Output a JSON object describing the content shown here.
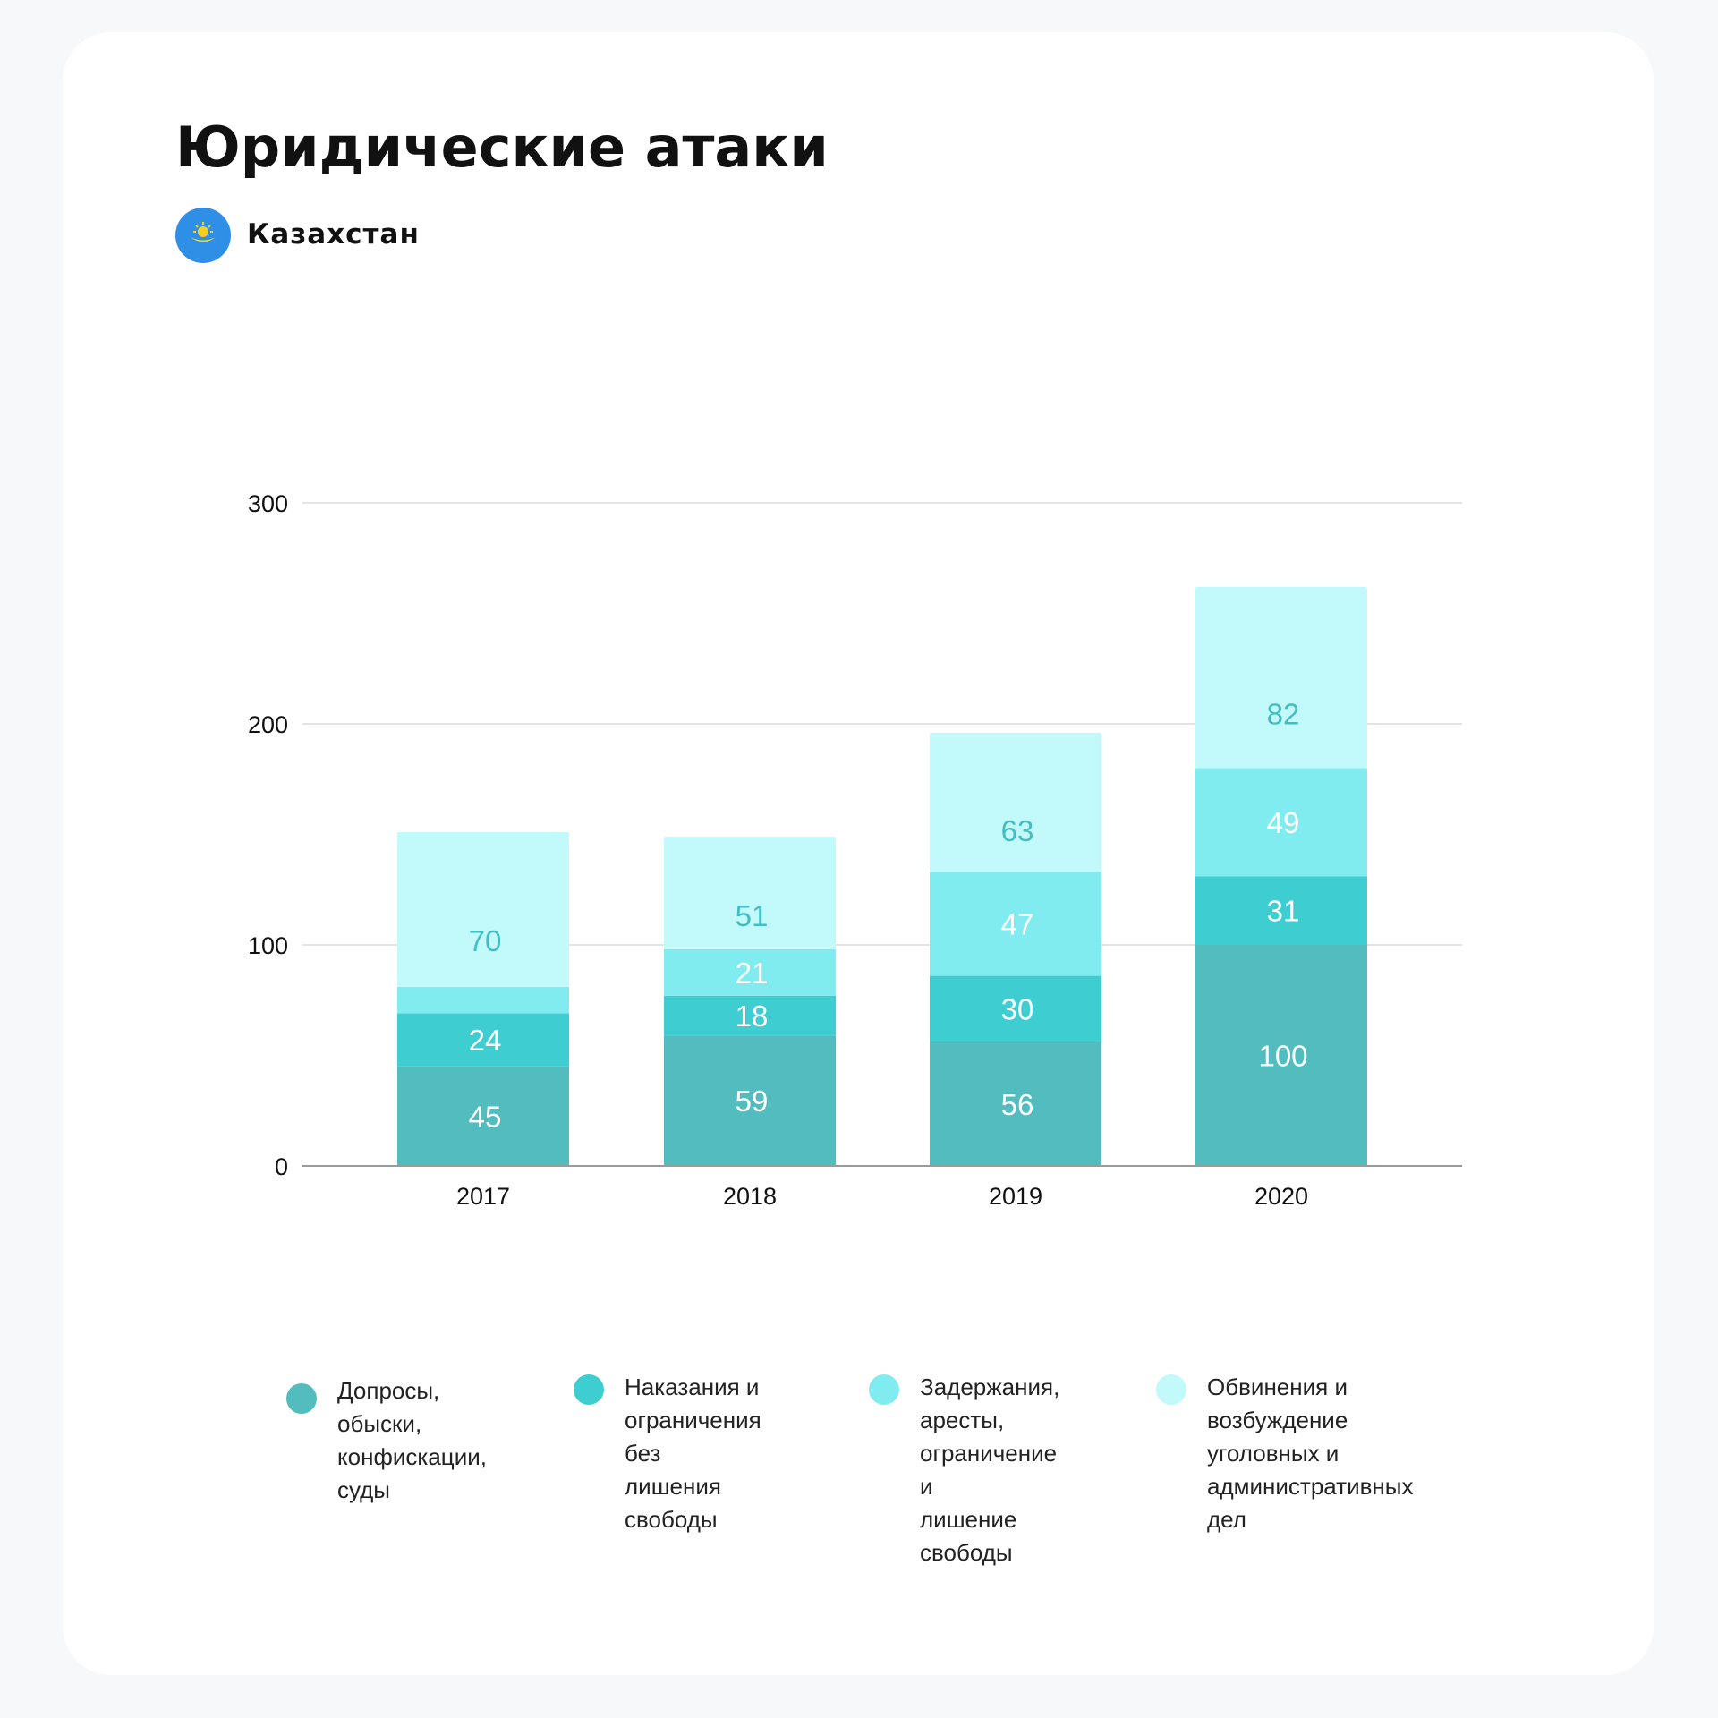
{
  "header": {
    "title": "Юридические атаки",
    "country": "Казахстан"
  },
  "flag": {
    "icon": "kazakhstan-flag-icon",
    "background": "#2f8fe6",
    "emblem": "#f5d020"
  },
  "colors": {
    "gridline": "#dcdcdc",
    "axis": "#9a9a9a",
    "tick_label": "#111111",
    "data_label_dark": "#45bcbf",
    "data_label_light": "#ffffff"
  },
  "chart_data": {
    "type": "bar",
    "stacked": true,
    "categories": [
      "2017",
      "2018",
      "2019",
      "2020"
    ],
    "ylim": [
      0,
      300
    ],
    "yticks": [
      0,
      100,
      200,
      300
    ],
    "grid": true,
    "legend_placement": "bottom",
    "series": [
      {
        "name": "Допросы, обыски,\nконфискации,\nсуды",
        "color": "#53bcbe",
        "values": [
          45,
          59,
          56,
          100
        ]
      },
      {
        "name": "Наказания и\nограничения без\nлишения\nсвободы",
        "color": "#3ecdd1",
        "values": [
          24,
          18,
          30,
          31
        ]
      },
      {
        "name": "Задержания,\nаресты,\nограничение и\nлишение свободы",
        "color": "#81ecf0",
        "values": [
          12,
          21,
          47,
          49
        ]
      },
      {
        "name": "Обвинения и\nвозбуждение\nуголовных и\nадминистративных дел",
        "color": "#c2fafb",
        "values": [
          70,
          51,
          63,
          82
        ]
      }
    ],
    "data_labels": [
      [
        "45",
        "59",
        "56",
        "100"
      ],
      [
        "24",
        "18",
        "30",
        "31"
      ],
      [
        "",
        "21",
        "47",
        "49"
      ],
      [
        "70",
        "51",
        "63",
        "82"
      ]
    ]
  }
}
